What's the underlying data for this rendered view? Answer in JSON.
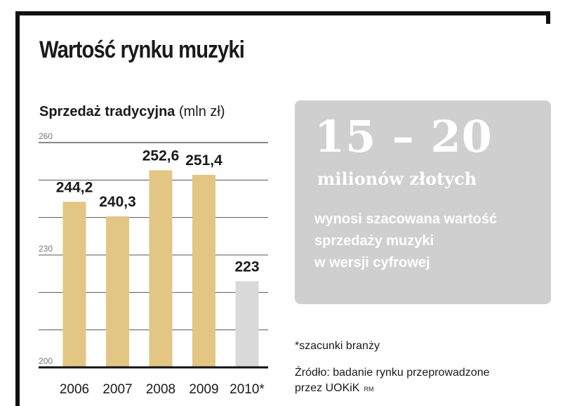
{
  "title": "Wartość rynku muzyki",
  "subtitle": {
    "bold": "Sprzedaż tradycyjna",
    "unit": "(mln zł)"
  },
  "chart_data": {
    "type": "bar",
    "title": "Sprzedaż tradycyjna",
    "ylabel": "(mln zł)",
    "categories": [
      "2006",
      "2007",
      "2008",
      "2009",
      "2010*"
    ],
    "values": [
      244.2,
      240.3,
      252.6,
      251.4,
      223
    ],
    "value_labels": [
      "244,2",
      "240,3",
      "252,6",
      "251,4",
      "223"
    ],
    "ylim": [
      200,
      260
    ],
    "yticks": [
      200,
      230,
      260
    ],
    "grid": true,
    "colors": {
      "actual": "#e3c684",
      "estimate": "#d9d9d9"
    },
    "estimate_index": 4
  },
  "info_box": {
    "big_number": "15 – 20",
    "big_unit": "milionów złotych",
    "description_lines": [
      "wynosi szacowana wartość",
      "sprzedaży muzyki",
      "w wersji cyfrowej"
    ]
  },
  "footnote": "*szacunki branży",
  "source": {
    "line1": "Źródło: badanie rynku przeprowadzone",
    "line2": "przez UOKiK",
    "tag": "RM"
  }
}
